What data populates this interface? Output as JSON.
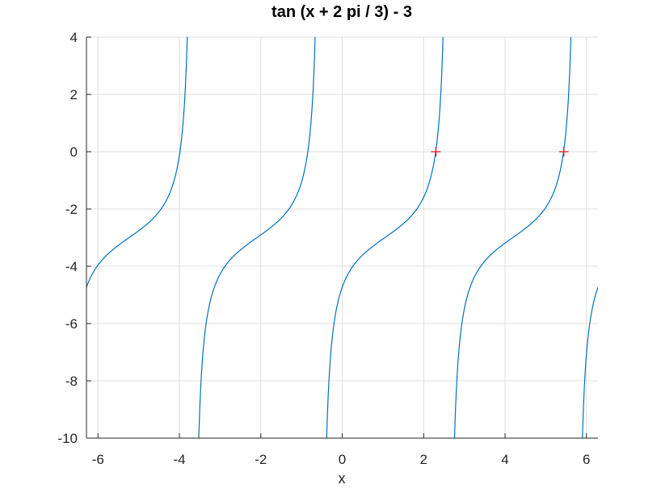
{
  "chart_data": {
    "type": "line",
    "title": "tan (x + 2 pi / 3) - 3",
    "xlabel": "x",
    "ylabel": "",
    "xlim": [
      -6.2832,
      6.2832
    ],
    "ylim": [
      -10,
      4
    ],
    "xticks": [
      -6,
      -4,
      -2,
      0,
      2,
      4,
      6
    ],
    "yticks": [
      4,
      2,
      0,
      -2,
      -4,
      -6,
      -8,
      -10
    ],
    "grid": true,
    "function": "tan(x + 2*pi/3) - 3",
    "series": [
      {
        "color": "#0072bd",
        "x_start": -6.2832,
        "x_end": 6.2832,
        "samples": 2400
      }
    ],
    "roots": {
      "marker": "+",
      "color": "#ff0000",
      "points": [
        {
          "x": 2.3017,
          "y": 0
        },
        {
          "x": 5.4433,
          "y": 0
        }
      ]
    }
  }
}
